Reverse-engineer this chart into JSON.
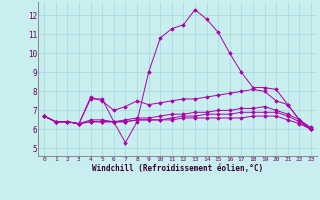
{
  "background_color": "#c8eef0",
  "grid_color": "#aadddd",
  "line_color": "#aa00aa",
  "xlabel": "Windchill (Refroidissement éolien,°C)",
  "ylabel_ticks": [
    5,
    6,
    7,
    8,
    9,
    10,
    11,
    12
  ],
  "xlabel_ticks": [
    0,
    1,
    2,
    3,
    4,
    5,
    6,
    7,
    8,
    9,
    10,
    11,
    12,
    13,
    14,
    15,
    16,
    17,
    18,
    19,
    20,
    21,
    22,
    23
  ],
  "xmin": -0.5,
  "xmax": 23.5,
  "ymin": 4.6,
  "ymax": 12.7,
  "series": [
    [
      6.7,
      6.4,
      6.4,
      6.3,
      7.6,
      7.6,
      6.4,
      5.3,
      6.4,
      9.0,
      10.8,
      11.3,
      11.5,
      12.3,
      11.8,
      11.1,
      10.0,
      9.0,
      8.2,
      8.2,
      8.1,
      7.3,
      6.5,
      6.0
    ],
    [
      6.7,
      6.4,
      6.4,
      6.3,
      7.7,
      7.5,
      7.0,
      7.2,
      7.5,
      7.3,
      7.4,
      7.5,
      7.6,
      7.6,
      7.7,
      7.8,
      7.9,
      8.0,
      8.1,
      8.0,
      7.5,
      7.3,
      6.5,
      6.1
    ],
    [
      6.7,
      6.4,
      6.4,
      6.3,
      6.4,
      6.4,
      6.4,
      6.4,
      6.5,
      6.5,
      6.5,
      6.5,
      6.6,
      6.6,
      6.6,
      6.6,
      6.6,
      6.6,
      6.7,
      6.7,
      6.7,
      6.5,
      6.3,
      6.0
    ],
    [
      6.7,
      6.4,
      6.4,
      6.3,
      6.4,
      6.4,
      6.4,
      6.5,
      6.6,
      6.6,
      6.7,
      6.8,
      6.8,
      6.9,
      6.9,
      7.0,
      7.0,
      7.1,
      7.1,
      7.2,
      7.0,
      6.8,
      6.5,
      6.0
    ],
    [
      6.7,
      6.4,
      6.4,
      6.3,
      6.5,
      6.5,
      6.4,
      6.4,
      6.5,
      6.5,
      6.5,
      6.6,
      6.7,
      6.7,
      6.8,
      6.8,
      6.8,
      6.9,
      6.9,
      6.9,
      6.9,
      6.7,
      6.4,
      6.0
    ]
  ]
}
